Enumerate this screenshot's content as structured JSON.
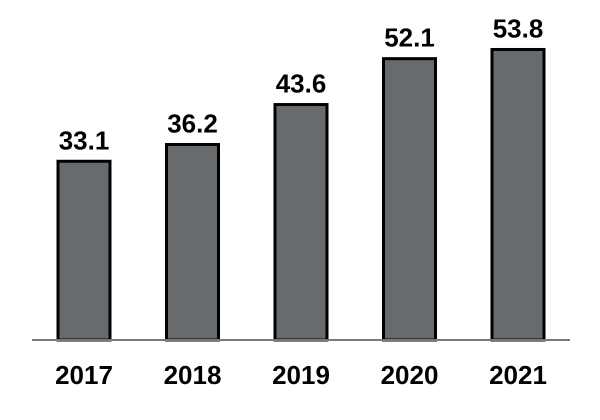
{
  "chart_data": {
    "type": "bar",
    "categories": [
      "2017",
      "2018",
      "2019",
      "2020",
      "2021"
    ],
    "values": [
      33.1,
      36.2,
      43.6,
      52.1,
      53.8
    ],
    "value_labels": [
      "33.1",
      "36.2",
      "43.6",
      "52.1",
      "53.8"
    ],
    "title": "",
    "xlabel": "",
    "ylabel": "",
    "ylim": [
      0,
      55
    ],
    "grid": false,
    "legend": "none",
    "colors": {
      "bar_fill": "#686b6e",
      "bar_stroke": "#000000",
      "axis": "#7a7a7a"
    }
  }
}
